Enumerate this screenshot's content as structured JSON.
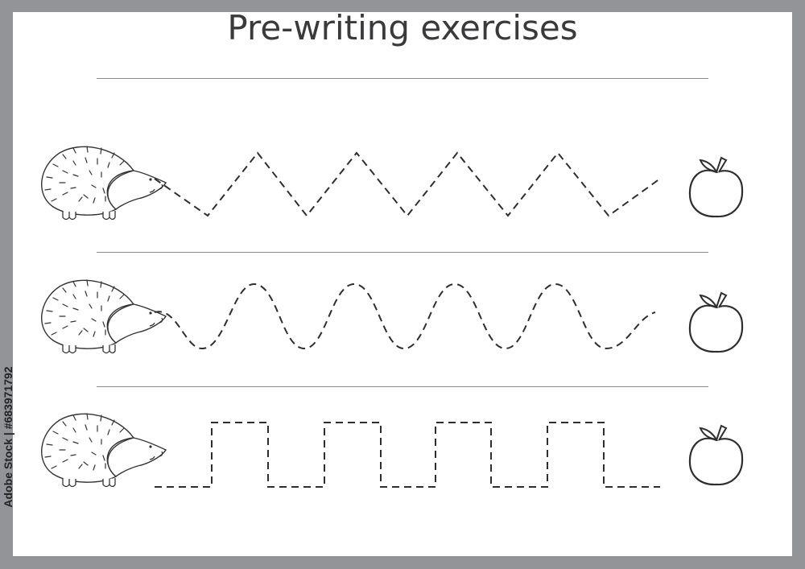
{
  "title": "Pre-writing exercises",
  "watermark": "Adobe Stock | #683971792",
  "colors": {
    "frame": "#939498",
    "ink": "#2e2e2e",
    "rule": "#8a8a8a",
    "paper": "#ffffff"
  },
  "rows": [
    {
      "start_icon": "hedgehog-icon",
      "pattern": "zigzag",
      "end_icon": "apple-icon"
    },
    {
      "start_icon": "hedgehog-icon",
      "pattern": "wave",
      "end_icon": "apple-icon"
    },
    {
      "start_icon": "hedgehog-icon",
      "pattern": "square-wave",
      "end_icon": "apple-icon"
    }
  ]
}
